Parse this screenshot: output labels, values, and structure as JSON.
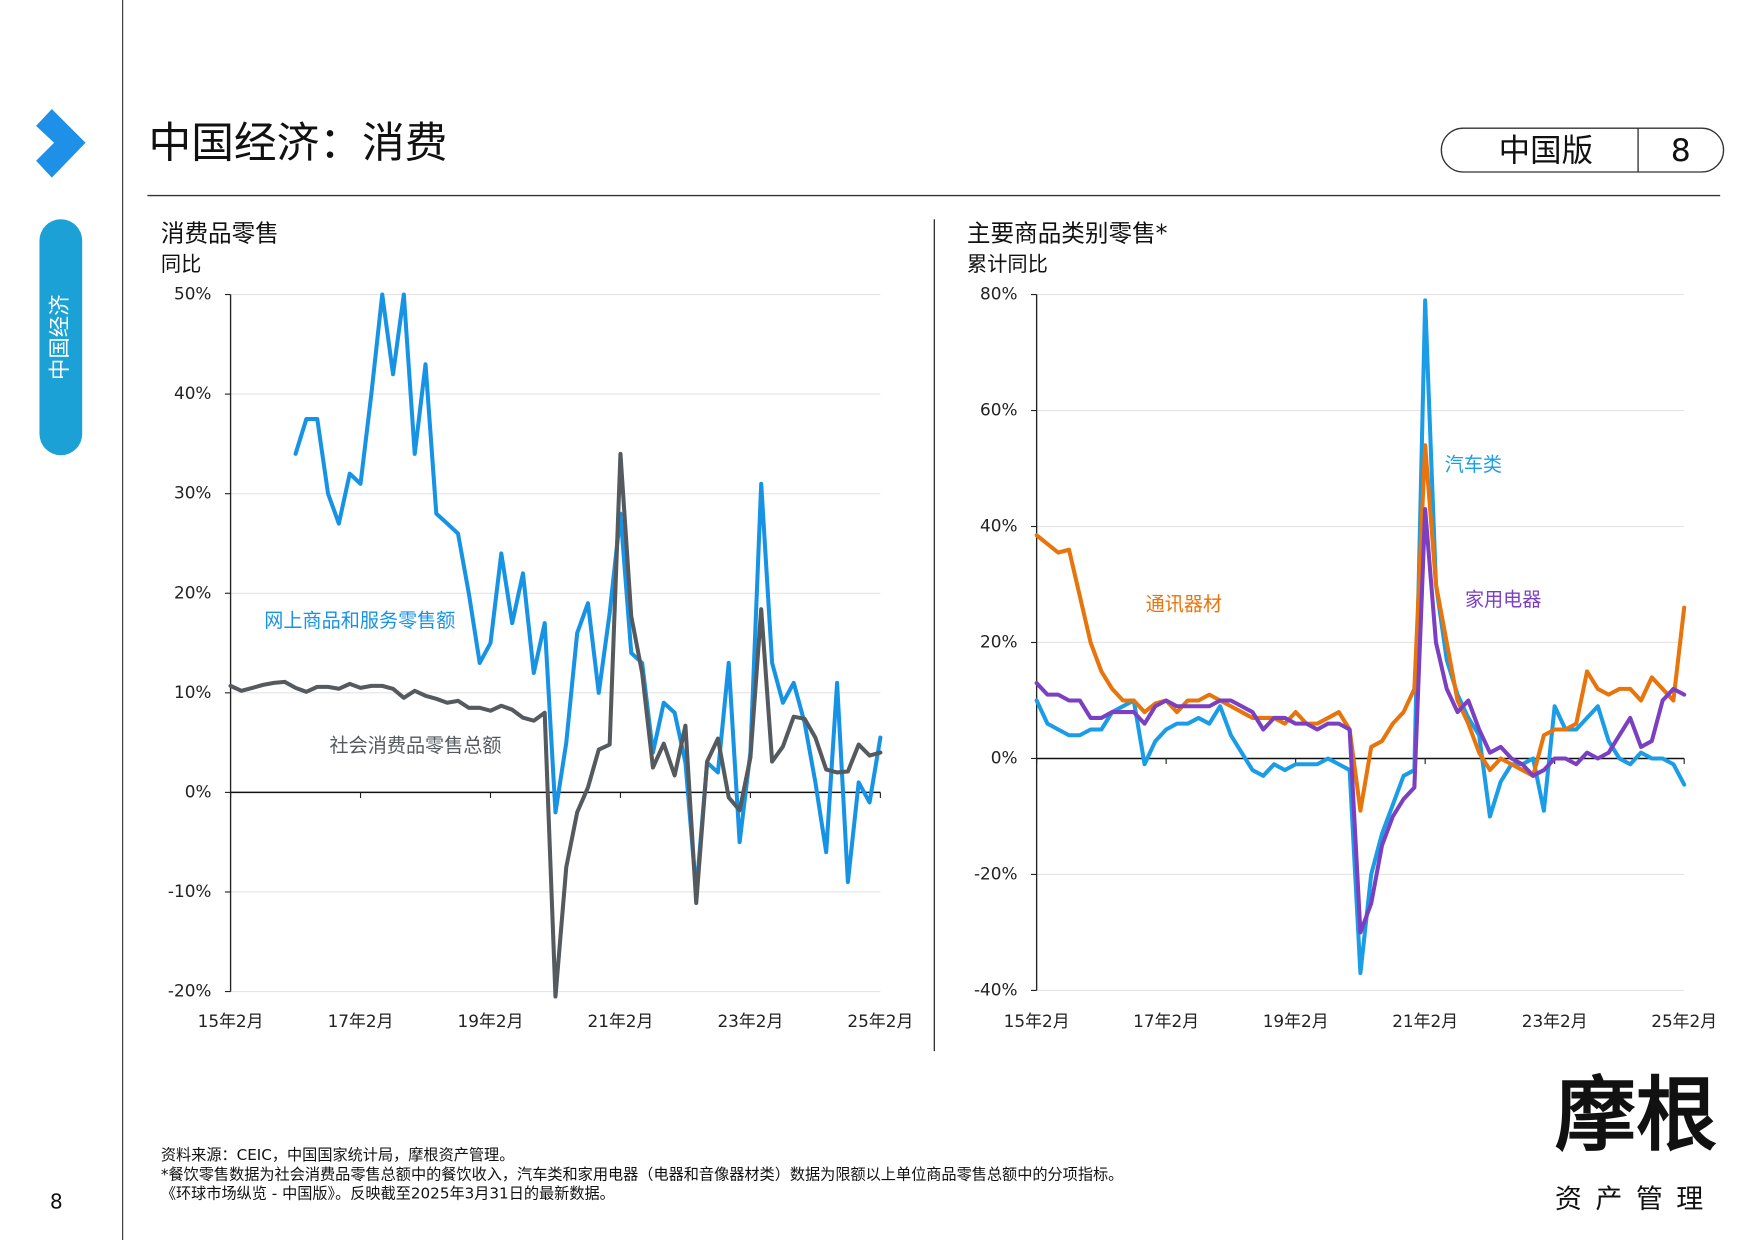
{
  "header": {
    "title": "中国经济：消费",
    "edition": "中国版",
    "page": "8"
  },
  "sidebar": {
    "section": "中国经济"
  },
  "page_number": "8",
  "chart_data": [
    {
      "type": "line",
      "title": "消费品零售",
      "subtitle": "同比",
      "categories": [
        "15年2月",
        null,
        null,
        null,
        null,
        null,
        null,
        null,
        null,
        null,
        null,
        null,
        "17年2月",
        null,
        null,
        null,
        null,
        null,
        null,
        null,
        null,
        null,
        null,
        null,
        "19年2月",
        null,
        null,
        null,
        null,
        null,
        null,
        null,
        null,
        null,
        null,
        null,
        "21年2月",
        null,
        null,
        null,
        null,
        null,
        null,
        null,
        null,
        null,
        null,
        null,
        "23年2月",
        null,
        null,
        null,
        null,
        null,
        null,
        null,
        null,
        null,
        null,
        null,
        "25年2月"
      ],
      "ylim": [
        -20,
        50
      ],
      "yticks": [
        {
          "value": -20,
          "label": "-20%"
        },
        {
          "value": -10,
          "label": "-10%"
        },
        {
          "value": 0,
          "label": "0%"
        },
        {
          "value": 10,
          "label": "10%"
        },
        {
          "value": 20,
          "label": "20%"
        },
        {
          "value": 30,
          "label": "30%"
        },
        {
          "value": 40,
          "label": "40%"
        },
        {
          "value": 50,
          "label": "50%"
        }
      ],
      "grid": true,
      "series": [
        {
          "name": "网上商品和服务零售额",
          "color": "#1793e6",
          "values": [
            null,
            null,
            null,
            null,
            null,
            null,
            34,
            37.5,
            37.5,
            30,
            27,
            32,
            31,
            40,
            50,
            42,
            50,
            34,
            43,
            28,
            27,
            26,
            20,
            13,
            15,
            24,
            17,
            22,
            12,
            17,
            -2,
            5,
            16,
            19,
            10,
            18,
            28,
            14,
            13,
            4,
            9,
            8,
            3,
            -10,
            3,
            2,
            13,
            -5,
            4,
            31,
            13,
            9,
            11,
            7,
            1,
            -6,
            11,
            -9,
            1,
            -1,
            5.5
          ]
        },
        {
          "name": "社会消费品零售总额",
          "color": "#555a5f",
          "values": [
            10.7,
            10.2,
            10.5,
            10.8,
            11,
            11.1,
            10.5,
            10.1,
            10.6,
            10.6,
            10.4,
            10.9,
            10.5,
            10.7,
            10.7,
            10.4,
            9.5,
            10.2,
            9.7,
            9.4,
            9,
            9.2,
            8.5,
            8.5,
            8.2,
            8.7,
            8.3,
            7.5,
            7.2,
            8,
            -20.5,
            -7.5,
            -2,
            0.5,
            4.3,
            4.8,
            34,
            17.7,
            12,
            2.5,
            4.9,
            1.7,
            6.7,
            -11.1,
            3.1,
            5.4,
            -0.5,
            -1.8,
            3.5,
            18.4,
            3.1,
            4.6,
            7.6,
            7.4,
            5.5,
            2.3,
            2,
            2.1,
            4.8,
            3.7,
            4
          ]
        }
      ]
    },
    {
      "type": "line",
      "title": "主要商品类别零售*",
      "subtitle": "累计同比",
      "categories": [
        "15年2月",
        null,
        null,
        null,
        null,
        null,
        null,
        null,
        null,
        null,
        null,
        null,
        "17年2月",
        null,
        null,
        null,
        null,
        null,
        null,
        null,
        null,
        null,
        null,
        null,
        "19年2月",
        null,
        null,
        null,
        null,
        null,
        null,
        null,
        null,
        null,
        null,
        null,
        "21年2月",
        null,
        null,
        null,
        null,
        null,
        null,
        null,
        null,
        null,
        null,
        null,
        "23年2月",
        null,
        null,
        null,
        null,
        null,
        null,
        null,
        null,
        null,
        null,
        null,
        "25年2月"
      ],
      "ylim": [
        -40,
        80
      ],
      "yticks": [
        {
          "value": -40,
          "label": "-40%"
        },
        {
          "value": -20,
          "label": "-20%"
        },
        {
          "value": 0,
          "label": "0%"
        },
        {
          "value": 20,
          "label": "20%"
        },
        {
          "value": 40,
          "label": "40%"
        },
        {
          "value": 60,
          "label": "60%"
        },
        {
          "value": 80,
          "label": "80%"
        }
      ],
      "grid": true,
      "series": [
        {
          "name": "汽车类",
          "color": "#1a9de6",
          "values": [
            10,
            6,
            5,
            4,
            4,
            5,
            5,
            8,
            9,
            10,
            -1,
            3,
            5,
            6,
            6,
            7,
            6,
            9,
            4,
            1,
            -2,
            -3,
            -1,
            -2,
            -1,
            -1,
            -1,
            0,
            -1,
            -2,
            -37,
            -20,
            -13,
            -8,
            -3,
            -2,
            79,
            30,
            17,
            11,
            7,
            4,
            -10,
            -4,
            -1,
            -1,
            0,
            -9,
            9,
            5,
            5,
            7,
            9,
            3,
            0,
            -1,
            1,
            0,
            0,
            -1,
            -4.5
          ]
        },
        {
          "name": "通讯器材",
          "color": "#e8740c",
          "values": [
            38.5,
            37,
            35.5,
            36,
            28,
            20,
            15,
            12,
            10,
            10,
            8,
            9.5,
            10,
            8,
            10,
            10,
            11,
            10,
            9,
            8,
            7,
            7,
            7,
            6,
            8,
            6,
            6,
            7,
            8,
            5,
            -9,
            2,
            3,
            6,
            8,
            12,
            54,
            30,
            20,
            10,
            6,
            1,
            -2,
            0,
            -1,
            -2,
            -3,
            4,
            5,
            5,
            6,
            15,
            12,
            11,
            12,
            12,
            10,
            14,
            12,
            10,
            26
          ]
        },
        {
          "name": "家用电器",
          "color": "#7b3fc2",
          "values": [
            13,
            11,
            11,
            10,
            10,
            7,
            7,
            8,
            8,
            8,
            6,
            9,
            10,
            9,
            9,
            9,
            9,
            10,
            10,
            9,
            8,
            5,
            7,
            7,
            6,
            6,
            5,
            6,
            6,
            5,
            -30,
            -25,
            -15,
            -10,
            -7,
            -5,
            43,
            20,
            12,
            8,
            10,
            5,
            1,
            2,
            0,
            -1,
            -3,
            -2,
            0,
            0,
            -1,
            1,
            0,
            1,
            4,
            7,
            2,
            3,
            10,
            12,
            11
          ]
        }
      ]
    }
  ],
  "footnotes": [
    "资料来源：CEIC，中国国家统计局，摩根资产管理。",
    "*餐饮零售数据为社会消费品零售总额中的餐饮收入，汽车类和家用电器（电器和音像器材类）数据为限额以上单位商品零售总额中的分项指标。",
    "《环球市场纵览 - 中国版》。反映截至2025年3月31日的最新数据。"
  ],
  "logo": {
    "name": "摩根",
    "sub": "资产管理"
  }
}
